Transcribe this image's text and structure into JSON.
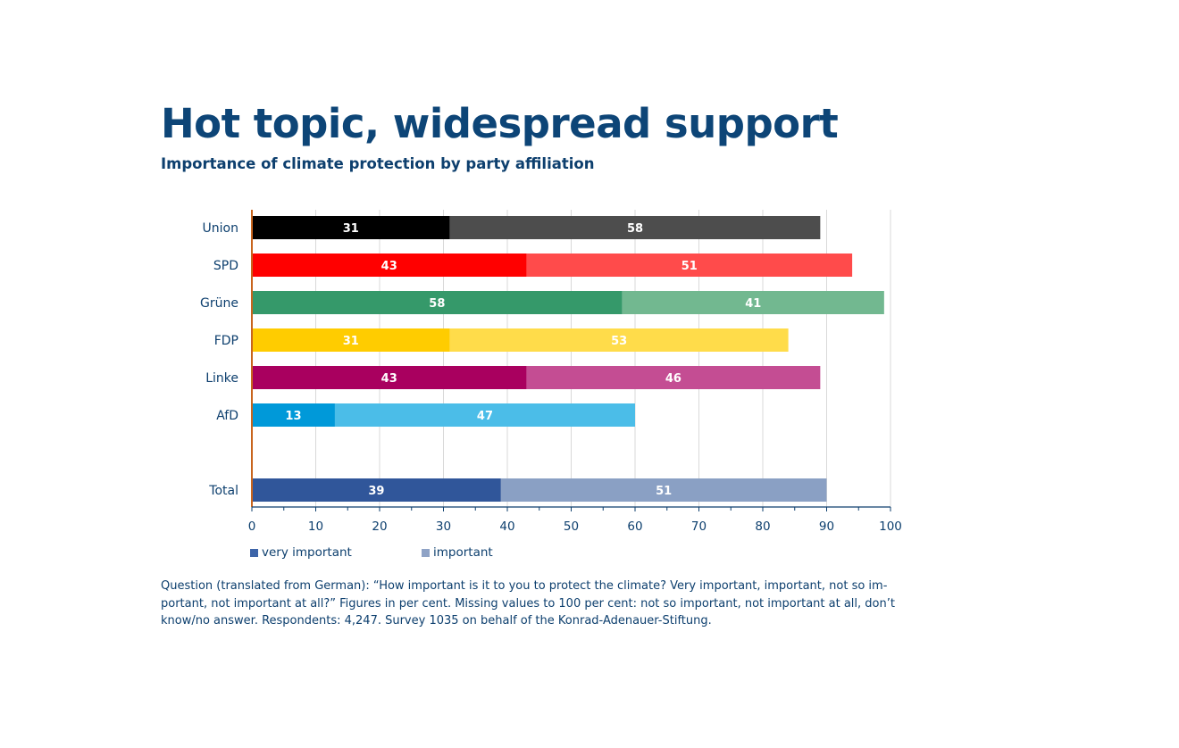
{
  "title": "Hot topic, widespread support",
  "subtitle": "Importance of climate protection by party affiliation",
  "note": "Question (translated from German): “How important is it to you to protect the climate? Very important, important, not so im-portant, not important at all?” Figures in per cent. Missing values to 100 per cent: not so important, not important at all, don’t know/no answer. Respondents: 4,247. Survey 1035 on behalf of the Konrad-Adenauer-Stiftung.",
  "legend": {
    "very_important": "very important",
    "important": "important"
  },
  "colors": {
    "axis": "#0d3f6e",
    "zero_line": "#c8651e",
    "grid": "#d9d9d9",
    "legend_very_important": "#3d64a8",
    "legend_important": "#8fa3c6"
  },
  "chart_data": {
    "type": "bar",
    "orientation": "horizontal",
    "stacked": true,
    "categories": [
      "Union",
      "SPD",
      "Grüne",
      "FDP",
      "Linke",
      "AfD",
      "",
      "Total"
    ],
    "series": [
      {
        "name": "very important",
        "values": [
          31,
          43,
          58,
          31,
          43,
          13,
          null,
          39
        ],
        "colors": [
          "#000000",
          "#ff0000",
          "#35996a",
          "#ffcc00",
          "#a9005f",
          "#0099d9",
          null,
          "#30569a"
        ]
      },
      {
        "name": "important",
        "values": [
          58,
          51,
          41,
          53,
          46,
          47,
          null,
          51
        ],
        "colors": [
          "#4d4d4d",
          "#ff4b4b",
          "#72b890",
          "#ffdc4a",
          "#c44d93",
          "#4bbde8",
          null,
          "#8aa0c4"
        ]
      }
    ],
    "xlim": [
      0,
      100
    ],
    "xticks": [
      0,
      10,
      20,
      30,
      40,
      50,
      60,
      70,
      80,
      90,
      100
    ],
    "grid": true,
    "legend_position": "bottom-left",
    "xlabel": "",
    "ylabel": ""
  }
}
